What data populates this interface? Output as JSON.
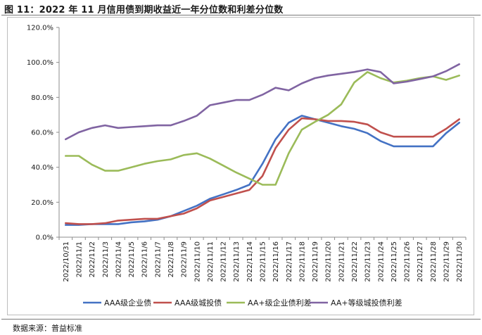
{
  "header": {
    "title": "图 11：2022 年 11 月信用债到期收益近一年分位数和利差分位数"
  },
  "footer": {
    "source": "数据来源：普益标准"
  },
  "chart_data": {
    "type": "line",
    "title": "",
    "xlabel": "",
    "ylabel": "",
    "ylim": [
      0,
      120
    ],
    "y_ticks": [
      0,
      20,
      40,
      60,
      80,
      100,
      120
    ],
    "y_tick_labels": [
      "0.0%",
      "20.0%",
      "40.0%",
      "60.0%",
      "80.0%",
      "100.0%",
      "120.0%"
    ],
    "grid": false,
    "legend_position": "bottom",
    "x": [
      "2022/10/31",
      "2022/11/1",
      "2022/11/2",
      "2022/11/3",
      "2022/11/4",
      "2022/11/5",
      "2022/11/6",
      "2022/11/7",
      "2022/11/8",
      "2022/11/9",
      "2022/11/10",
      "2022/11/11",
      "2022/11/12",
      "2022/11/13",
      "2022/11/14",
      "2022/11/15",
      "2022/11/16",
      "2022/11/17",
      "2022/11/18",
      "2022/11/19",
      "2022/11/20",
      "2022/11/21",
      "2022/11/22",
      "2022/11/23",
      "2022/11/24",
      "2022/11/25",
      "2022/11/26",
      "2022/11/27",
      "2022/11/28",
      "2022/11/29",
      "2022/11/30"
    ],
    "series": [
      {
        "name": "AAA级企业债",
        "color": "#4472c4",
        "values": [
          7,
          7,
          7.5,
          7.5,
          7.5,
          8.5,
          9,
          10,
          12,
          15,
          18,
          22,
          24.5,
          27,
          30,
          42,
          56,
          65.5,
          69.5,
          67.5,
          65.5,
          63.5,
          62,
          59.5,
          55,
          52,
          52,
          52,
          52,
          59.5,
          65.5
        ]
      },
      {
        "name": "AAA级城投债",
        "color": "#c0504d",
        "values": [
          8,
          7.5,
          7.5,
          8,
          9.5,
          10,
          10.5,
          10.5,
          12,
          13.5,
          16.5,
          21,
          23,
          25,
          27,
          35,
          51,
          61.5,
          68,
          67.5,
          66.5,
          66.5,
          66,
          64.5,
          60,
          57.5,
          57.5,
          57.5,
          57.5,
          62,
          67.5
        ]
      },
      {
        "name": "AA+级企业债利差",
        "color": "#9bbb59",
        "values": [
          46.5,
          46.5,
          41.5,
          38,
          38,
          40,
          42,
          43.5,
          44.5,
          47,
          48,
          45,
          41,
          37,
          33.5,
          30,
          30,
          48,
          61.5,
          66,
          70,
          76,
          88.5,
          94.5,
          91,
          88.5,
          89.5,
          91,
          92,
          90,
          92.5
        ]
      },
      {
        "name": "AA+等级城投债利差",
        "color": "#8064a2",
        "values": [
          56,
          60,
          62.5,
          64,
          62.5,
          63,
          63.5,
          64,
          64,
          66.5,
          69.5,
          75.5,
          77,
          78.5,
          78.5,
          81.5,
          85.5,
          84,
          88,
          91,
          92.5,
          93.5,
          94.5,
          96,
          94.5,
          88,
          89,
          90.5,
          92,
          95,
          99
        ]
      }
    ]
  }
}
